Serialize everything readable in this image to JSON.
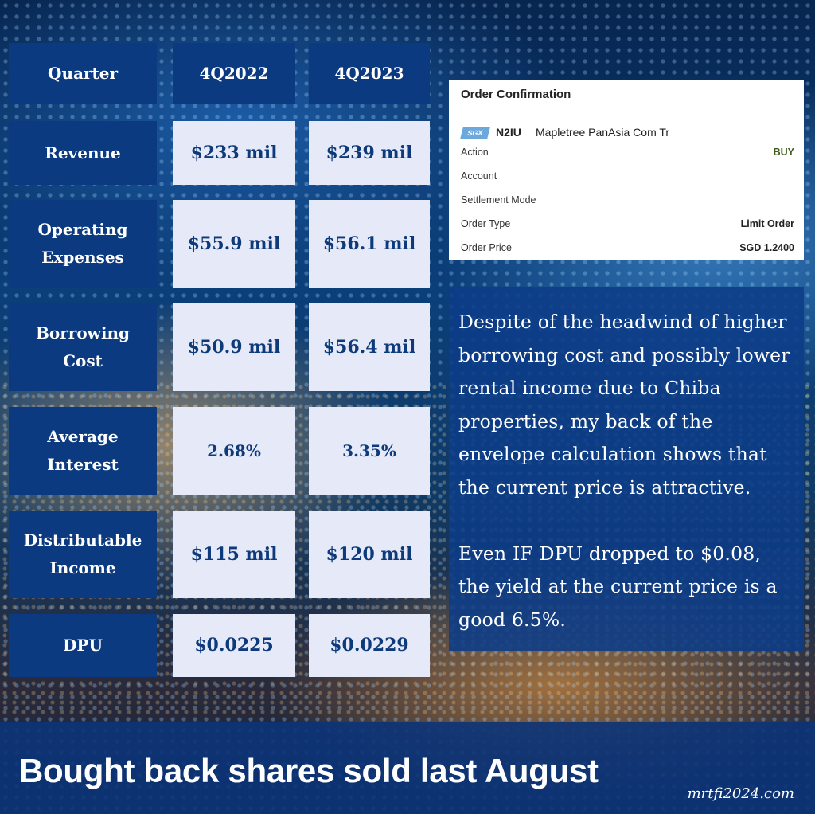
{
  "table": {
    "headers": [
      "Quarter",
      "4Q2022",
      "4Q2023"
    ],
    "rows": [
      {
        "label": "Revenue",
        "q2022": "$233 mil",
        "q2023": "$239 mil"
      },
      {
        "label": "Operating Expenses",
        "q2022": "$55.9 mil",
        "q2023": "$56.1 mil"
      },
      {
        "label": "Borrowing Cost",
        "q2022": "$50.9 mil",
        "q2023": "$56.4 mil"
      },
      {
        "label": "Average Interest",
        "q2022": "2.68%",
        "q2023": "3.35%"
      },
      {
        "label": "Distributable Income",
        "q2022": "$115 mil",
        "q2023": "$120 mil"
      },
      {
        "label": "DPU",
        "q2022": "$0.0225",
        "q2023": "$0.0229"
      }
    ]
  },
  "order": {
    "title": "Order Confirmation",
    "exchange": "SGX",
    "ticker": "N2IU",
    "name": "Mapletree PanAsia Com Tr",
    "fields": [
      {
        "label": "Action",
        "value": "BUY"
      },
      {
        "label": "Account",
        "value": ""
      },
      {
        "label": "Settlement Mode",
        "value": ""
      },
      {
        "label": "Order Type",
        "value": "Limit Order"
      },
      {
        "label": "Order Price",
        "value": "SGD 1.2400"
      }
    ]
  },
  "note": {
    "para1": "Despite of the headwind of higher borrowing cost and possibly lower rental income due to Chiba properties, my back of the envelope calculation shows that the current price is attractive.",
    "para2": "Even IF DPU dropped to $0.08, the yield at the current price is a good 6.5%."
  },
  "footer": {
    "banner": "Bought back shares sold last August",
    "site": "mrtfi2024.com"
  },
  "colors": {
    "header_cell": "#0b3a80",
    "value_cell": "#e6e9f8",
    "value_text": "#0d3a7a",
    "buy": "#3d5c1e"
  }
}
